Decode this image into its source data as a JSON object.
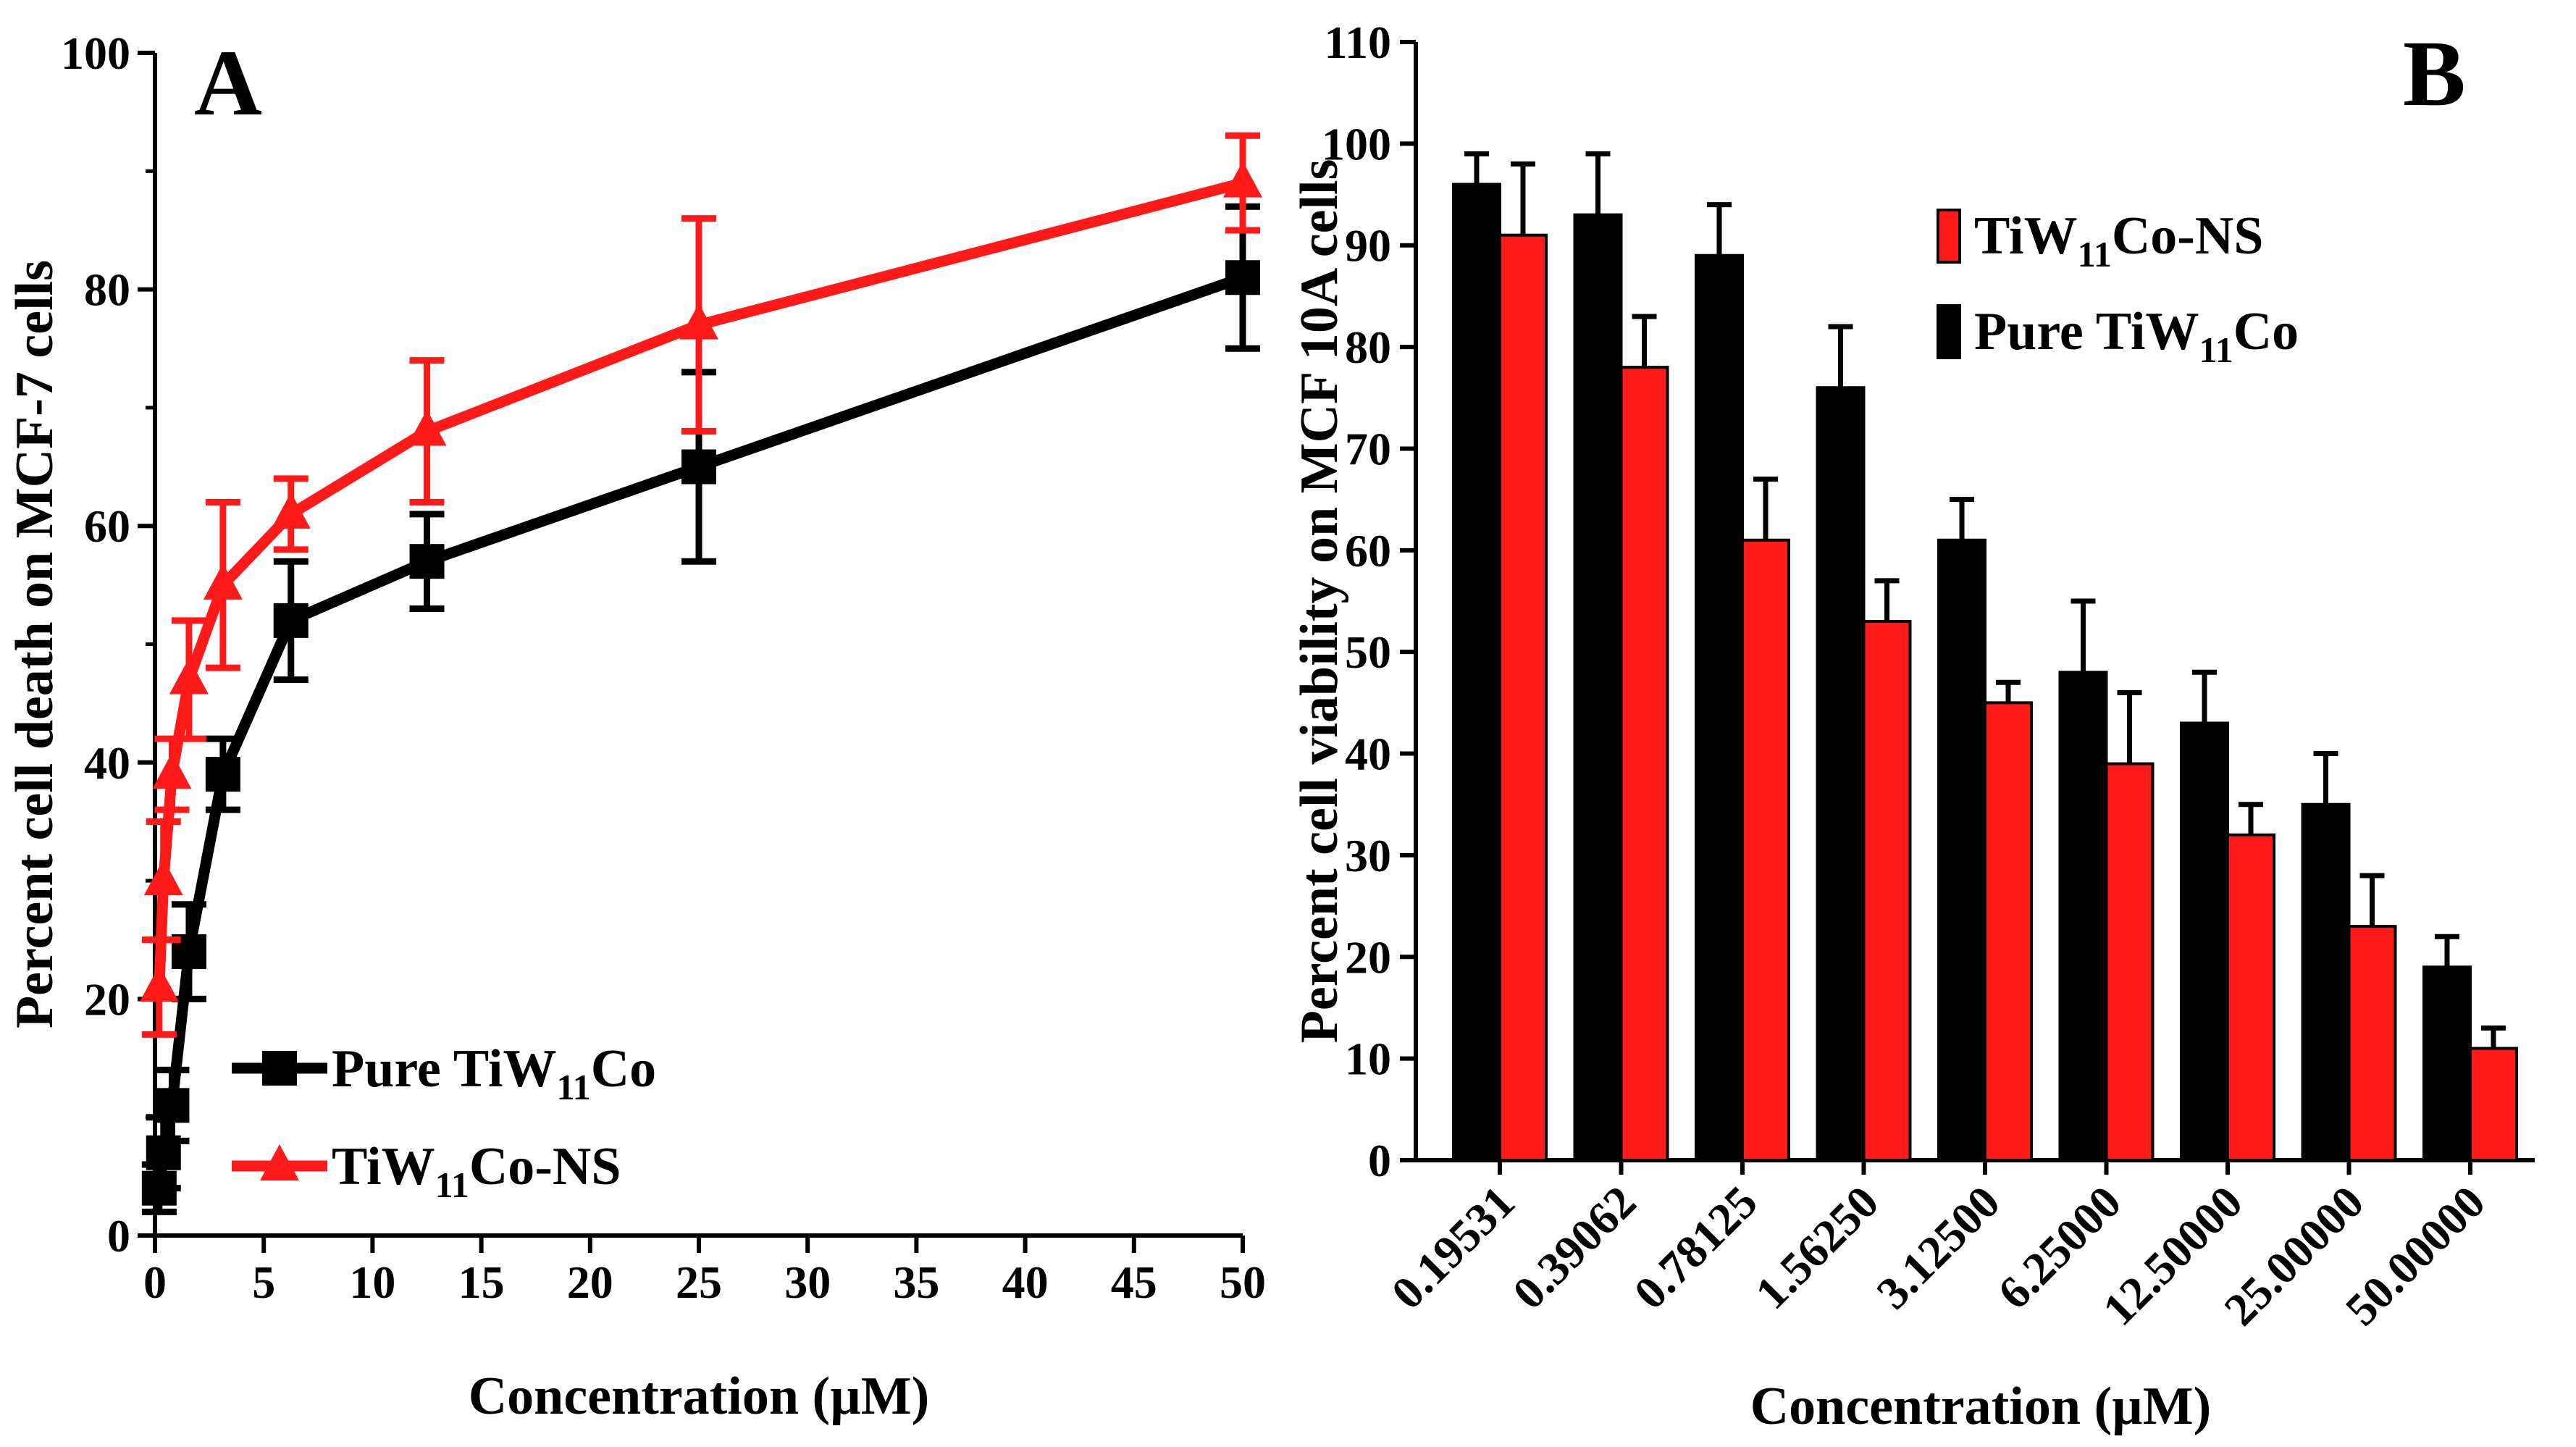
{
  "figure": {
    "panels": [
      "A",
      "B"
    ]
  },
  "chart_data": [
    {
      "panel": "A",
      "type": "line",
      "xlabel": "Concentration (µM)",
      "ylabel": "Percent cell death on MCF-7 cells",
      "xlim": [
        0,
        50
      ],
      "ylim": [
        0,
        100
      ],
      "x_ticks": [
        0,
        5,
        10,
        15,
        20,
        25,
        30,
        35,
        40,
        45,
        50
      ],
      "y_ticks": [
        0,
        20,
        40,
        60,
        80,
        100
      ],
      "grid": false,
      "legend_position": "bottom-left",
      "series": [
        {
          "name": "Pure TiW11Co",
          "legend_label": {
            "base": "Pure TiW",
            "sub": "11",
            "tail": "Co"
          },
          "color": "#000000",
          "marker": "square",
          "x": [
            0.195,
            0.391,
            0.781,
            1.563,
            3.125,
            6.25,
            12.5,
            25,
            50
          ],
          "y": [
            4,
            7,
            11,
            24,
            39,
            52,
            57,
            65,
            81
          ],
          "error": [
            2,
            3,
            3,
            4,
            3,
            5,
            4,
            8,
            6
          ]
        },
        {
          "name": "TiW11Co-NS",
          "legend_label": {
            "base": "TiW",
            "sub": "11",
            "tail": "Co-NS"
          },
          "color": "#ff1a1a",
          "marker": "triangle",
          "x": [
            0.195,
            0.391,
            0.781,
            1.563,
            3.125,
            6.25,
            12.5,
            25,
            50
          ],
          "y": [
            21,
            30,
            39,
            47,
            55,
            61,
            68,
            77,
            89
          ],
          "error": [
            4,
            5,
            3,
            5,
            7,
            3,
            6,
            9,
            4
          ]
        }
      ]
    },
    {
      "panel": "B",
      "type": "bar",
      "xlabel": "Concentration (µM)",
      "ylabel": "Percent cell viability on MCF 10A cells",
      "categories": [
        "0.19531",
        "0.39062",
        "0.78125",
        "1.56250",
        "3.12500",
        "6.25000",
        "12.50000",
        "25.00000",
        "50.00000"
      ],
      "ylim": [
        0,
        110
      ],
      "y_ticks": [
        0,
        10,
        20,
        30,
        40,
        50,
        60,
        70,
        80,
        90,
        100,
        110
      ],
      "grid": false,
      "legend_position": "top-right",
      "series": [
        {
          "name": "Pure TiW11Co",
          "legend_label": {
            "base": "Pure TiW",
            "sub": "11",
            "tail": "Co"
          },
          "color": "#000000",
          "values": [
            96,
            93,
            89,
            76,
            61,
            48,
            43,
            35,
            19
          ],
          "error": [
            3,
            6,
            5,
            6,
            4,
            7,
            5,
            5,
            3
          ]
        },
        {
          "name": "TiW11Co-NS",
          "legend_label": {
            "base": "TiW",
            "sub": "11",
            "tail": "Co-NS"
          },
          "color": "#ff1a1a",
          "values": [
            91,
            78,
            61,
            53,
            45,
            39,
            32,
            23,
            11
          ],
          "error": [
            7,
            5,
            6,
            4,
            2,
            7,
            3,
            5,
            2
          ]
        }
      ],
      "legend_order": [
        1,
        0
      ]
    }
  ]
}
